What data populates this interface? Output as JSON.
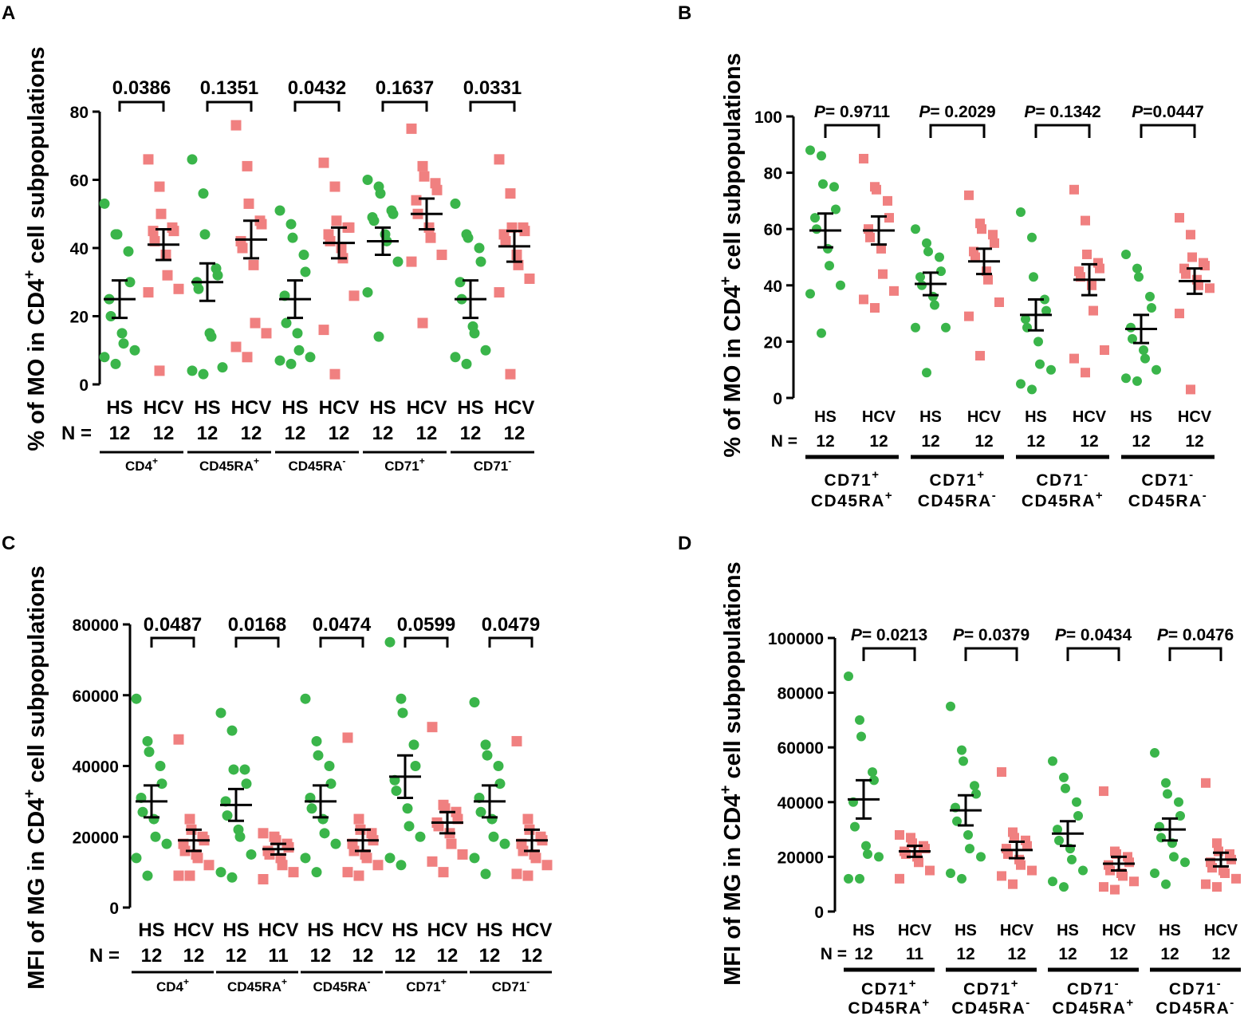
{
  "colors": {
    "hs": "#3ab54a",
    "hcv": "#f08080",
    "axis": "#000000"
  },
  "chart_data": [
    {
      "panel": "A",
      "type": "scatter",
      "ylabel_main": "% of MO in CD4",
      "ylabel_sup": "+",
      "ylabel_rest": " cell subpopulations",
      "ylim": [
        0,
        80
      ],
      "yticks": [
        "0",
        "20",
        "40",
        "60",
        "80"
      ],
      "n_prefix": "N = ",
      "groups": [
        {
          "pvalue": "0.0386",
          "subset_lines": [
            {
              "text": "CD4",
              "sup": "+"
            }
          ],
          "hs": {
            "label": "HS",
            "n": "12",
            "mean": 25,
            "sem": 5.5,
            "values": [
              53,
              44,
              44,
              39,
              30,
              25,
              20,
              15,
              12,
              10,
              8,
              6
            ]
          },
          "hcv": {
            "label": "HCV",
            "n": "12",
            "mean": 41,
            "sem": 4.5,
            "values": [
              66,
              58,
              50,
              46,
              45,
              45,
              42,
              38,
              32,
              28,
              27,
              4
            ]
          }
        },
        {
          "pvalue": "0.1351",
          "subset_lines": [
            {
              "text": "CD45RA",
              "sup": "+"
            }
          ],
          "hs": {
            "label": "HS",
            "n": "12",
            "mean": 30,
            "sem": 5.5,
            "values": [
              66,
              56,
              44,
              34,
              32,
              30,
              28,
              15,
              14,
              5,
              4,
              3
            ]
          },
          "hcv": {
            "label": "HCV",
            "n": "12",
            "mean": 42.5,
            "sem": 5.5,
            "values": [
              76,
              64,
              53,
              48,
              47,
              42,
              40,
              35,
              18,
              15,
              11,
              8
            ]
          }
        },
        {
          "pvalue": "0.0432",
          "subset_lines": [
            {
              "text": "CD45RA",
              "sup": "-"
            }
          ],
          "hs": {
            "label": "HS",
            "n": "12",
            "mean": 25,
            "sem": 5.5,
            "values": [
              51,
              47,
              43,
              38,
              33,
              26,
              18,
              15,
              10,
              8,
              7,
              6
            ]
          },
          "hcv": {
            "label": "HCV",
            "n": "12",
            "mean": 41.5,
            "sem": 4.5,
            "values": [
              65,
              58,
              48,
              46,
              46,
              44,
              42,
              40,
              37,
              26,
              16,
              3
            ]
          }
        },
        {
          "pvalue": "0.1637",
          "subset_lines": [
            {
              "text": "CD71",
              "sup": "+"
            }
          ],
          "hs": {
            "label": "HS",
            "n": "12",
            "mean": 42,
            "sem": 4,
            "values": [
              60,
              58,
              56,
              51,
              50,
              49,
              48,
              44,
              42,
              36,
              27,
              14
            ]
          },
          "hcv": {
            "label": "HCV",
            "n": "12",
            "mean": 50,
            "sem": 4.5,
            "values": [
              75,
              64,
              61,
              59,
              57,
              54,
              50,
              46,
              43,
              38,
              36,
              18
            ]
          }
        },
        {
          "pvalue": "0.0331",
          "subset_lines": [
            {
              "text": "CD71",
              "sup": "-"
            }
          ],
          "hs": {
            "label": "HS",
            "n": "12",
            "mean": 25,
            "sem": 5.5,
            "values": [
              53,
              44,
              43,
              40,
              36,
              30,
              25,
              17,
              15,
              10,
              8,
              6
            ]
          },
          "hcv": {
            "label": "HCV",
            "n": "12",
            "mean": 40.5,
            "sem": 4.5,
            "values": [
              66,
              56,
              46,
              46,
              45,
              44,
              42,
              38,
              35,
              31,
              27,
              3
            ]
          }
        }
      ]
    },
    {
      "panel": "B",
      "type": "scatter",
      "ylabel_main": "% of MO in CD4",
      "ylabel_sup": "+",
      "ylabel_rest": " cell subpopulations",
      "ylim": [
        0,
        100
      ],
      "yticks": [
        "0",
        "20",
        "40",
        "60",
        "80",
        "100"
      ],
      "n_prefix": "N = ",
      "p_prefix": "P",
      "groups": [
        {
          "pvalue": "= 0.9711",
          "subset_lines": [
            {
              "text": "CD71",
              "sup": "+"
            },
            {
              "text": "CD45RA",
              "sup": "+"
            }
          ],
          "hs": {
            "label": "HS",
            "n": "12",
            "mean": 59.5,
            "sem": 6,
            "values": [
              88,
              86,
              76,
              75,
              67,
              64,
              60,
              53,
              47,
              40,
              37,
              23
            ]
          },
          "hcv": {
            "label": "HCV",
            "n": "12",
            "mean": 59.5,
            "sem": 5,
            "values": [
              85,
              75,
              74,
              70,
              64,
              60,
              57,
              53,
              44,
              38,
              35,
              32
            ]
          }
        },
        {
          "pvalue": "= 0.2029",
          "subset_lines": [
            {
              "text": "CD71",
              "sup": "+"
            },
            {
              "text": "CD45RA",
              "sup": "-"
            }
          ],
          "hs": {
            "label": "HS",
            "n": "12",
            "mean": 40.5,
            "sem": 4,
            "values": [
              60,
              55,
              52,
              50,
              45,
              43,
              40,
              36,
              33,
              25,
              25,
              9
            ]
          },
          "hcv": {
            "label": "HCV",
            "n": "12",
            "mean": 48.5,
            "sem": 4.5,
            "values": [
              72,
              62,
              60,
              58,
              55,
              52,
              50,
              45,
              42,
              34,
              29,
              15
            ]
          }
        },
        {
          "pvalue": "= 0.1342",
          "subset_lines": [
            {
              "text": "CD71",
              "sup": "-"
            },
            {
              "text": "CD45RA",
              "sup": "+"
            }
          ],
          "hs": {
            "label": "HS",
            "n": "12",
            "mean": 29.5,
            "sem": 5.5,
            "values": [
              66,
              57,
              43,
              35,
              31,
              28,
              25,
              20,
              12,
              10,
              5,
              3
            ]
          },
          "hcv": {
            "label": "HCV",
            "n": "12",
            "mean": 42,
            "sem": 5.5,
            "values": [
              74,
              63,
              51,
              48,
              46,
              45,
              43,
              40,
              31,
              17,
              14,
              9
            ]
          }
        },
        {
          "pvalue": "=0.0447",
          "subset_lines": [
            {
              "text": "CD71",
              "sup": "-"
            },
            {
              "text": "CD45RA",
              "sup": "-"
            }
          ],
          "hs": {
            "label": "HS",
            "n": "12",
            "mean": 24.5,
            "sem": 5,
            "values": [
              51,
              46,
              43,
              36,
              32,
              25,
              21,
              17,
              14,
              10,
              7,
              6
            ]
          },
          "hcv": {
            "label": "HCV",
            "n": "12",
            "mean": 41.5,
            "sem": 4.5,
            "values": [
              64,
              58,
              50,
              48,
              47,
              46,
              44,
              42,
              40,
              39,
              30,
              3
            ]
          }
        }
      ]
    },
    {
      "panel": "C",
      "type": "scatter",
      "ylabel_main": "MFI of MG in CD4",
      "ylabel_sup": "+",
      "ylabel_rest": " cell subpopulations",
      "ylim": [
        0,
        80000
      ],
      "yticks": [
        "0",
        "20000",
        "40000",
        "60000",
        "80000"
      ],
      "n_prefix": "N = ",
      "groups": [
        {
          "pvalue": "0.0487",
          "subset_lines": [
            {
              "text": "CD4",
              "sup": "+"
            }
          ],
          "hs": {
            "label": "HS",
            "n": "12",
            "mean": 30000,
            "sem": 4500,
            "values": [
              59000,
              47000,
              44000,
              40000,
              35000,
              31000,
              27000,
              25000,
              20000,
              18000,
              14000,
              9000
            ]
          },
          "hcv": {
            "label": "HCV",
            "n": "12",
            "mean": 19000,
            "sem": 3000,
            "values": [
              47500,
              25000,
              22000,
              20000,
              19000,
              18000,
              16000,
              15000,
              14000,
              12000,
              9000,
              9000
            ]
          }
        },
        {
          "pvalue": "0.0168",
          "subset_lines": [
            {
              "text": "CD45RA",
              "sup": "+"
            }
          ],
          "hs": {
            "label": "HS",
            "n": "12",
            "mean": 29000,
            "sem": 4500,
            "values": [
              55000,
              50000,
              39000,
              39000,
              35000,
              30000,
              26000,
              22000,
              20000,
              15000,
              10000,
              8500
            ]
          },
          "hcv": {
            "label": "HCV",
            "n": "11",
            "mean": 16500,
            "sem": 1500,
            "values": [
              21000,
              20000,
              19000,
              18000,
              17000,
              16000,
              15000,
              14000,
              12000,
              10000,
              8000
            ]
          }
        },
        {
          "pvalue": "0.0474",
          "subset_lines": [
            {
              "text": "CD45RA",
              "sup": "-"
            }
          ],
          "hs": {
            "label": "HS",
            "n": "12",
            "mean": 30000,
            "sem": 4500,
            "values": [
              59000,
              47000,
              43000,
              40000,
              35000,
              31000,
              28000,
              25000,
              21000,
              18000,
              14000,
              10000
            ]
          },
          "hcv": {
            "label": "HCV",
            "n": "12",
            "mean": 19000,
            "sem": 3000,
            "values": [
              48000,
              25000,
              22000,
              21000,
              19000,
              18000,
              16000,
              15000,
              14000,
              12000,
              10000,
              9000
            ]
          }
        },
        {
          "pvalue": "0.0599",
          "subset_lines": [
            {
              "text": "CD71",
              "sup": "+"
            }
          ],
          "hs": {
            "label": "HS",
            "n": "12",
            "mean": 37000,
            "sem": 6000,
            "values": [
              75000,
              59000,
              55000,
              46000,
              40000,
              36000,
              33000,
              28000,
              23000,
              20000,
              14000,
              12000
            ]
          },
          "hcv": {
            "label": "HCV",
            "n": "12",
            "mean": 24000,
            "sem": 3000,
            "values": [
              51000,
              29000,
              28000,
              27000,
              25000,
              24000,
              23000,
              21000,
              18000,
              15000,
              13000,
              10000
            ]
          }
        },
        {
          "pvalue": "0.0479",
          "subset_lines": [
            {
              "text": "CD71",
              "sup": "-"
            }
          ],
          "hs": {
            "label": "HS",
            "n": "12",
            "mean": 30000,
            "sem": 4500,
            "values": [
              58000,
              46000,
              43000,
              40000,
              35000,
              31000,
              27000,
              25000,
              20000,
              18000,
              14000,
              9500
            ]
          },
          "hcv": {
            "label": "HCV",
            "n": "12",
            "mean": 19000,
            "sem": 3000,
            "values": [
              47000,
              25000,
              22000,
              20000,
              19000,
              18000,
              16000,
              15000,
              14000,
              12000,
              9500,
              9000
            ]
          }
        }
      ]
    },
    {
      "panel": "D",
      "type": "scatter",
      "ylabel_main": "MFI of MG in CD4",
      "ylabel_sup": "+",
      "ylabel_rest": " cell subpopulations",
      "ylim": [
        0,
        100000
      ],
      "yticks": [
        "0",
        "20000",
        "40000",
        "60000",
        "80000",
        "100000"
      ],
      "n_prefix": "N = ",
      "p_prefix": "P",
      "groups": [
        {
          "pvalue": "= 0.0213",
          "subset_lines": [
            {
              "text": "CD71",
              "sup": "+"
            },
            {
              "text": "CD45RA",
              "sup": "+"
            }
          ],
          "hs": {
            "label": "HS",
            "n": "12",
            "mean": 41000,
            "sem": 7000,
            "values": [
              86000,
              70000,
              64000,
              51000,
              48000,
              40000,
              31000,
              24000,
              21000,
              20000,
              12000,
              12000
            ]
          },
          "hcv": {
            "label": "HCV",
            "n": "11",
            "mean": 22000,
            "sem": 2000,
            "values": [
              28000,
              27000,
              25000,
              24000,
              23000,
              22000,
              21000,
              20000,
              18000,
              15000,
              12000
            ]
          }
        },
        {
          "pvalue": "= 0.0379",
          "subset_lines": [
            {
              "text": "CD71",
              "sup": "+"
            },
            {
              "text": "CD45RA",
              "sup": "-"
            }
          ],
          "hs": {
            "label": "HS",
            "n": "12",
            "mean": 37000,
            "sem": 5500,
            "values": [
              75000,
              59000,
              55000,
              46000,
              43000,
              38000,
              33000,
              28000,
              23000,
              20000,
              14000,
              12000
            ]
          },
          "hcv": {
            "label": "HCV",
            "n": "12",
            "mean": 22500,
            "sem": 3000,
            "values": [
              51000,
              29000,
              27000,
              26000,
              24000,
              23000,
              21000,
              19000,
              17000,
              15000,
              13000,
              10000
            ]
          }
        },
        {
          "pvalue": "= 0.0434",
          "subset_lines": [
            {
              "text": "CD71",
              "sup": "-"
            },
            {
              "text": "CD45RA",
              "sup": "+"
            }
          ],
          "hs": {
            "label": "HS",
            "n": "12",
            "mean": 28500,
            "sem": 4500,
            "values": [
              55000,
              49000,
              45000,
              40000,
              35000,
              30000,
              26000,
              23000,
              19000,
              15000,
              11000,
              9000
            ]
          },
          "hcv": {
            "label": "HCV",
            "n": "12",
            "mean": 17500,
            "sem": 2500,
            "values": [
              44000,
              22000,
              21000,
              20000,
              18000,
              17000,
              15000,
              14000,
              13000,
              11000,
              9000,
              8000
            ]
          }
        },
        {
          "pvalue": "= 0.0476",
          "subset_lines": [
            {
              "text": "CD71",
              "sup": "-"
            },
            {
              "text": "CD45RA",
              "sup": "-"
            }
          ],
          "hs": {
            "label": "HS",
            "n": "12",
            "mean": 30000,
            "sem": 4000,
            "values": [
              58000,
              47000,
              43000,
              40000,
              35000,
              31000,
              27000,
              25000,
              20000,
              18000,
              14000,
              10000
            ]
          },
          "hcv": {
            "label": "HCV",
            "n": "12",
            "mean": 19000,
            "sem": 2500,
            "values": [
              47000,
              25000,
              22000,
              21000,
              19000,
              18000,
              16000,
              15000,
              14000,
              12000,
              10000,
              9000
            ]
          }
        }
      ]
    }
  ]
}
